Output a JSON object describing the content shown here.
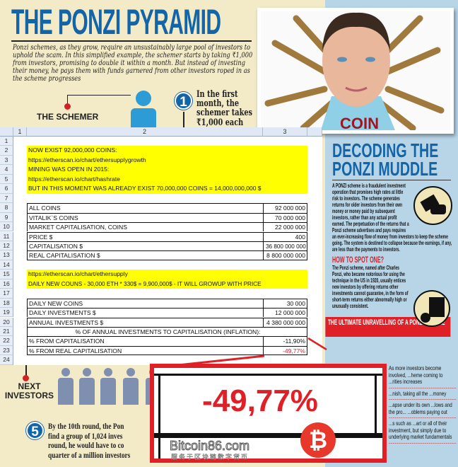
{
  "colors": {
    "accent_blue": "#1465a8",
    "highlight": "#ffff00",
    "alert_red": "#e02027",
    "bg_left": "#f3ebc8",
    "bg_right": "#b8d5e8"
  },
  "infographic": {
    "title": "THE PONZI PYRAMID",
    "intro": "Ponzi schemes, as they grow, require an unsustainably large pool of investors to uphold the scam. In this simplified example, the schemer starts by taking ₹1,000 from investors, promising to double it within a month. But instead of investing their money, he pays them with funds garnered from other investors roped in as the scheme progresses",
    "schemer_label": "THE SCHEMER",
    "step1_number": "1",
    "step1_text": "In the first month, the schemer takes ₹1,000 each",
    "next_investors_label": "NEXT INVESTORS",
    "step5_number": "5",
    "step5_lines": [
      "By the 10th round, the Pon",
      "find a group of 1,024 inves",
      "round, he would have to co",
      "quarter of a million investors"
    ]
  },
  "photo": {
    "shirt_text": "COIN"
  },
  "sidebar": {
    "title_line1": "DECODING THE",
    "title_line2": "PONZI MUDDLE",
    "body": "A PONZI scheme is a fraudulent investment operation that promises high rates at little risk to investors. The scheme generates returns for older investors from their own money or money paid by subsequent investors, rather than any actual profit earned. The perpetuation of the returns that a Ponzi scheme advertises and pays requires an ever-increasing flow of money from investors to keep the scheme going. The system is destined to collapse because the earnings, if any, are less than the payments to investors.",
    "how_heading": "HOW TO SPOT ONE?",
    "how_body": "The Ponzi scheme, named after Charles Ponzi, who became notorious for using the technique in the US in 1920, usually entices new investors by offering returns other investments cannot guarantee, in the form of short-term returns either abnormally high or unusually consistent.",
    "unravel_title": "THE ULTIMATE UNRAVELLING OF A PONZI SCHEME",
    "bullets": [
      "As more investors become involved, ...heme coming to ...rities increases",
      "...nish, taking all the ...money",
      "...apse under its own ...lows and the pro... ...oblems paying out",
      "...s such as ...art or all of their investment, but simply due to underlying market fundamentals"
    ]
  },
  "spreadsheet": {
    "columns": [
      "1",
      "2",
      "3"
    ],
    "rows": [
      {
        "n": "1",
        "label": "",
        "value": ""
      },
      {
        "n": "2",
        "label": "NOW EXIST 92,000,000 COINS:",
        "value": "",
        "hl": true
      },
      {
        "n": "3",
        "label": "https://etherscan.io/chart/ethersupplygrowth",
        "value": "",
        "hl": true
      },
      {
        "n": "4",
        "label": "MINING WAS OPEN IN 2015:",
        "value": "",
        "hl": true
      },
      {
        "n": "5",
        "label": "https://etherscan.io/chart/hashrate",
        "value": "",
        "hl": true
      },
      {
        "n": "6",
        "label": "BUT IN THIS MOMENT WAS ALREADY EXIST 70,000,000 COINS = 14,000,000,000 $",
        "value": "",
        "hl": true
      },
      {
        "n": "7",
        "label": "",
        "value": ""
      },
      {
        "n": "8",
        "label": "ALL COINS",
        "value": "92 000 000",
        "box": true
      },
      {
        "n": "9",
        "label": "VITALIK`S COINS",
        "value": "70 000 000",
        "box": true
      },
      {
        "n": "10",
        "label": "MARKET CAPITALISATION, COINS",
        "value": "22 000 000",
        "box": true
      },
      {
        "n": "11",
        "label": "PRICE  $",
        "value": "400",
        "box": true
      },
      {
        "n": "12",
        "label": "CAPITALISATION $",
        "value": "36 800 000 000",
        "box": true
      },
      {
        "n": "13",
        "label": "REAL CAPITALISATION $",
        "value": "8 800 000 000",
        "box": true,
        "end": true
      },
      {
        "n": "14",
        "label": "",
        "value": ""
      },
      {
        "n": "15",
        "label": "https://etherscan.io/chart/ethersupply",
        "value": "",
        "hl": true
      },
      {
        "n": "16",
        "label": "DAILY NEW COUNS - 30,000 ETH * 330$ = 9,900,000$ - IT WILL GROWUP WITH PRICE",
        "value": "",
        "hl": true
      },
      {
        "n": "17",
        "label": "",
        "value": ""
      },
      {
        "n": "18",
        "label": "DAILY NEW COINS",
        "value": "30 000",
        "box": true
      },
      {
        "n": "19",
        "label": "DAILY INVESTMENTS $",
        "value": "12 000 000",
        "box": true
      },
      {
        "n": "20",
        "label": "ANNUAL INVESTMENTS $",
        "value": "4 380 000 000",
        "box": true
      },
      {
        "n": "21",
        "label": "% OF ANNUAL INVESTMENTS TO CAPITALISATION (INFLATION):",
        "value": "",
        "box": true,
        "merged": true
      },
      {
        "n": "22",
        "label": "% FROM CAPITALISATION",
        "value": "-11,90%",
        "box": true
      },
      {
        "n": "23",
        "label": "% FROM REAL CAPITALISATION",
        "value": "-49,77%",
        "box": true,
        "end": true,
        "red": true
      },
      {
        "n": "24",
        "label": "",
        "value": ""
      }
    ]
  },
  "callout": {
    "value": "-49,77%"
  },
  "watermark": {
    "name": "Bitcoin86.com",
    "subtitle": "服务于区块链数字货币",
    "symbol": "₿"
  }
}
